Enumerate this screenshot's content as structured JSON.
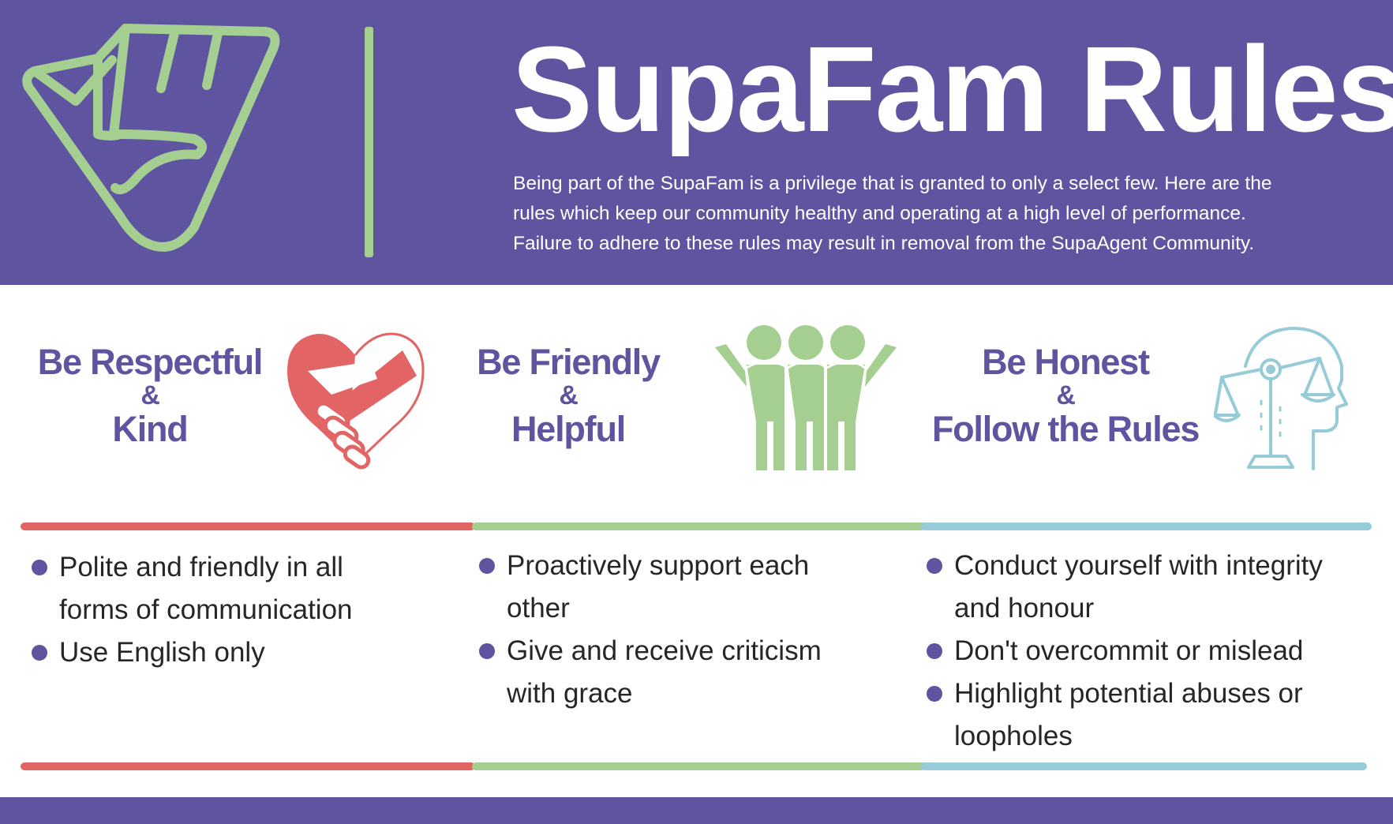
{
  "header": {
    "title": "SupaFam Rules!",
    "intro_lines": [
      "Being part of the SupaFam is a privilege that is granted to only a select few. Here are the",
      "rules which keep our community healthy and operating at a high level of performance.",
      "Failure to adhere to these rules may result in removal from the SupaAgent Community."
    ]
  },
  "values": [
    {
      "line1": "Be Respectful",
      "amp": "&",
      "line2": "Kind",
      "icon": "handshake-heart-icon",
      "color": "#e26464",
      "items": [
        [
          "Polite and friendly in all",
          "forms of communication"
        ],
        [
          "Use English only"
        ]
      ]
    },
    {
      "line1": "Be Friendly",
      "amp": "&",
      "line2": "Helpful",
      "icon": "friends-group-icon",
      "color": "#a4cf90",
      "items": [
        [
          "Proactively support each",
          "other"
        ],
        [
          "Give and receive criticism",
          "with grace"
        ]
      ]
    },
    {
      "line1": "Be Honest",
      "amp": "&",
      "line2": "Follow the Rules",
      "icon": "scales-head-icon",
      "color": "#96cbd8",
      "items": [
        [
          "Conduct yourself with integrity",
          "and honour"
        ],
        [
          "Don't overcommit or mislead"
        ],
        [
          "Highlight potential abuses or",
          "loopholes"
        ]
      ]
    }
  ],
  "colors": {
    "brand_purple": "#5e54a0",
    "logo_green": "#a4cf90",
    "red": "#e26464",
    "green": "#a4cf90",
    "blue": "#96cbd8"
  }
}
